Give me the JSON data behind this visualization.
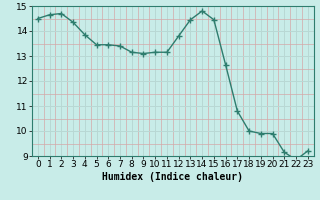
{
  "x": [
    0,
    1,
    2,
    3,
    4,
    5,
    6,
    7,
    8,
    9,
    10,
    11,
    12,
    13,
    14,
    15,
    16,
    17,
    18,
    19,
    20,
    21,
    22,
    23
  ],
  "y": [
    14.5,
    14.65,
    14.7,
    14.35,
    13.85,
    13.45,
    13.45,
    13.4,
    13.15,
    13.1,
    13.15,
    13.15,
    13.8,
    14.45,
    14.8,
    14.45,
    12.65,
    10.8,
    10.0,
    9.9,
    9.9,
    9.15,
    8.85,
    9.2
  ],
  "line_color": "#2e7d6e",
  "marker": "+",
  "marker_size": 4,
  "line_width": 1.0,
  "bg_color": "#c8ece8",
  "grid_major_color": "#b8d8d4",
  "grid_minor_color": "#d4a8a8",
  "xlabel": "Humidex (Indice chaleur)",
  "ylim": [
    9,
    15
  ],
  "xlim": [
    -0.5,
    23.5
  ],
  "yticks": [
    9,
    10,
    11,
    12,
    13,
    14,
    15
  ],
  "xticks": [
    0,
    1,
    2,
    3,
    4,
    5,
    6,
    7,
    8,
    9,
    10,
    11,
    12,
    13,
    14,
    15,
    16,
    17,
    18,
    19,
    20,
    21,
    22,
    23
  ],
  "xlabel_fontsize": 7,
  "tick_fontsize": 6.5
}
